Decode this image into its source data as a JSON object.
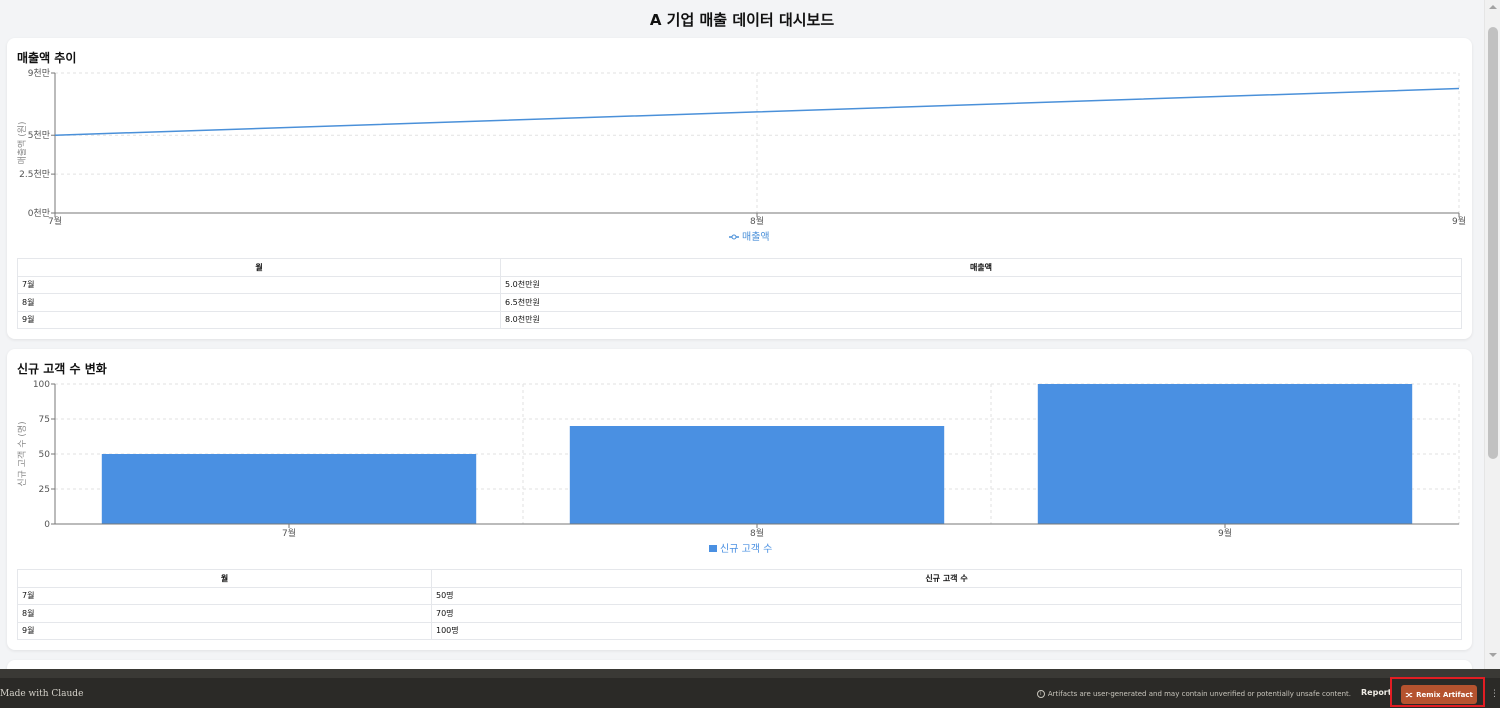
{
  "page": {
    "title": "A 기업 매출 데이터 대시보드"
  },
  "revenue_card": {
    "title": "매출액 추이",
    "legend": "매출액",
    "y_axis_label": "매출액 (원)",
    "y_ticks": [
      "9천만",
      "5천만",
      "2.5천만",
      "0천만"
    ],
    "x_ticks": [
      "7월",
      "8월",
      "9월"
    ],
    "table": {
      "headers": [
        "월",
        "매출액"
      ],
      "rows": [
        [
          "7월",
          "5.0천만원"
        ],
        [
          "8월",
          "6.5천만원"
        ],
        [
          "9월",
          "8.0천만원"
        ]
      ]
    }
  },
  "customers_card": {
    "title": "신규 고객 수 변화",
    "legend": "신규 고객 수",
    "y_axis_label": "신규 고객 수 (명)",
    "y_ticks": [
      "100",
      "75",
      "50",
      "25",
      "0"
    ],
    "x_ticks": [
      "7월",
      "8월",
      "9월"
    ],
    "table": {
      "headers": [
        "월",
        "신규 고객 수"
      ],
      "rows": [
        [
          "7월",
          "50명"
        ],
        [
          "8월",
          "70명"
        ],
        [
          "9월",
          "100명"
        ]
      ]
    }
  },
  "chart_data": [
    {
      "type": "line",
      "categories": [
        "7월",
        "8월",
        "9월"
      ],
      "series": [
        {
          "name": "매출액",
          "values": [
            50000000,
            65000000,
            80000000
          ]
        }
      ],
      "title": "매출액 추이",
      "xlabel": "",
      "ylabel": "매출액 (원)",
      "ylim": [
        0,
        90000000
      ],
      "grid": true,
      "legend": "bottom-center",
      "color": "#4a90d9"
    },
    {
      "type": "bar",
      "categories": [
        "7월",
        "8월",
        "9월"
      ],
      "series": [
        {
          "name": "신규 고객 수",
          "values": [
            50,
            70,
            100
          ]
        }
      ],
      "title": "신규 고객 수 변화",
      "xlabel": "",
      "ylabel": "신규 고객 수 (명)",
      "ylim": [
        0,
        100
      ],
      "grid": true,
      "legend": "bottom-center",
      "color": "#4a90e2"
    }
  ],
  "footer": {
    "made_with": "Made with Claude",
    "disclaimer": "Artifacts are user-generated and may contain unverified or potentially unsafe content.",
    "report": "Report",
    "remix": "Remix Artifact"
  }
}
